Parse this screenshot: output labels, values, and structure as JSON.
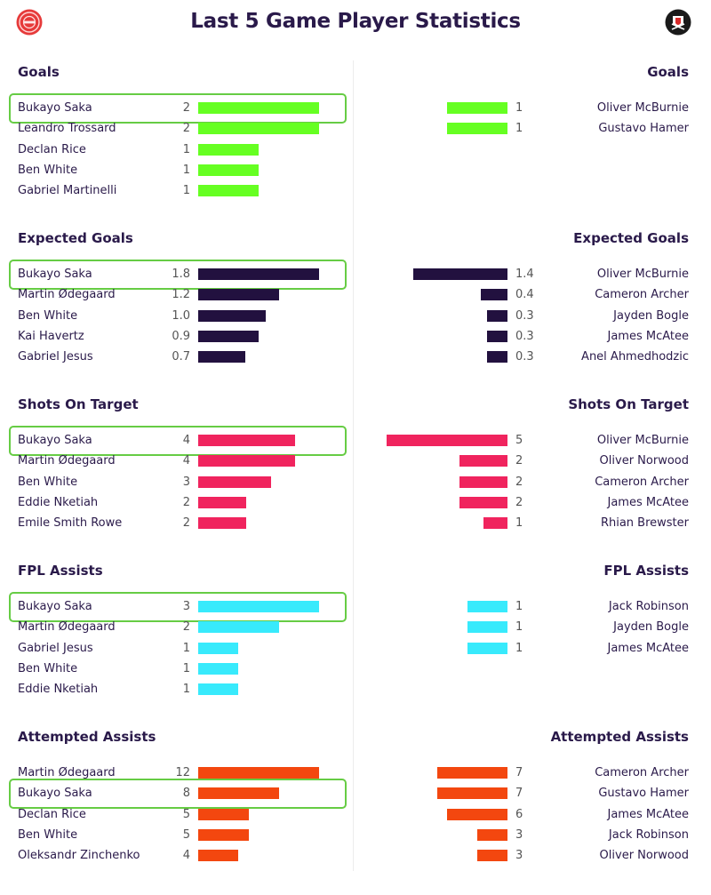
{
  "title": "Last 5 Game Player Statistics",
  "home_badge": "arsenal-badge-icon",
  "away_badge": "sheffield-united-badge-icon",
  "highlight_color": "#66cc44",
  "chart_data": [
    {
      "type": "bar",
      "title": "Goals",
      "color": "#66ff22",
      "max": 2,
      "highlight_player": "Bukayo Saka",
      "left": [
        {
          "name": "Bukayo Saka",
          "value": 2,
          "label": "2"
        },
        {
          "name": "Leandro Trossard",
          "value": 2,
          "label": "2"
        },
        {
          "name": "Declan Rice",
          "value": 1,
          "label": "1"
        },
        {
          "name": "Ben White",
          "value": 1,
          "label": "1"
        },
        {
          "name": "Gabriel Martinelli",
          "value": 1,
          "label": "1"
        }
      ],
      "right": [
        {
          "name": "Oliver McBurnie",
          "value": 1,
          "label": "1"
        },
        {
          "name": "Gustavo Hamer",
          "value": 1,
          "label": "1"
        }
      ]
    },
    {
      "type": "bar",
      "title": "Expected Goals",
      "color": "#22113f",
      "max": 1.8,
      "highlight_player": "Bukayo Saka",
      "left": [
        {
          "name": "Bukayo Saka",
          "value": 1.8,
          "label": "1.8"
        },
        {
          "name": "Martin Ødegaard",
          "value": 1.2,
          "label": "1.2"
        },
        {
          "name": "Ben White",
          "value": 1.0,
          "label": "1.0"
        },
        {
          "name": "Kai Havertz",
          "value": 0.9,
          "label": "0.9"
        },
        {
          "name": "Gabriel Jesus",
          "value": 0.7,
          "label": "0.7"
        }
      ],
      "right": [
        {
          "name": "Oliver McBurnie",
          "value": 1.4,
          "label": "1.4"
        },
        {
          "name": "Cameron Archer",
          "value": 0.4,
          "label": "0.4"
        },
        {
          "name": "Jayden Bogle",
          "value": 0.3,
          "label": "0.3"
        },
        {
          "name": "James McAtee",
          "value": 0.3,
          "label": "0.3"
        },
        {
          "name": "Anel Ahmedhodzic",
          "value": 0.3,
          "label": "0.3"
        }
      ]
    },
    {
      "type": "bar",
      "title": "Shots On Target",
      "color": "#f0245e",
      "max": 5,
      "highlight_player": "Bukayo Saka",
      "left": [
        {
          "name": "Bukayo Saka",
          "value": 4,
          "label": "4"
        },
        {
          "name": "Martin Ødegaard",
          "value": 4,
          "label": "4"
        },
        {
          "name": "Ben White",
          "value": 3,
          "label": "3"
        },
        {
          "name": "Eddie Nketiah",
          "value": 2,
          "label": "2"
        },
        {
          "name": "Emile Smith Rowe",
          "value": 2,
          "label": "2"
        }
      ],
      "right": [
        {
          "name": "Oliver McBurnie",
          "value": 5,
          "label": "5"
        },
        {
          "name": "Oliver Norwood",
          "value": 2,
          "label": "2"
        },
        {
          "name": "Cameron Archer",
          "value": 2,
          "label": "2"
        },
        {
          "name": "James McAtee",
          "value": 2,
          "label": "2"
        },
        {
          "name": "Rhian Brewster",
          "value": 1,
          "label": "1"
        }
      ]
    },
    {
      "type": "bar",
      "title": "FPL Assists",
      "color": "#38eafc",
      "max": 3,
      "highlight_player": "Bukayo Saka",
      "left": [
        {
          "name": "Bukayo Saka",
          "value": 3,
          "label": "3"
        },
        {
          "name": "Martin Ødegaard",
          "value": 2,
          "label": "2"
        },
        {
          "name": "Gabriel Jesus",
          "value": 1,
          "label": "1"
        },
        {
          "name": "Ben White",
          "value": 1,
          "label": "1"
        },
        {
          "name": "Eddie Nketiah",
          "value": 1,
          "label": "1"
        }
      ],
      "right": [
        {
          "name": "Jack Robinson",
          "value": 1,
          "label": "1"
        },
        {
          "name": "Jayden Bogle",
          "value": 1,
          "label": "1"
        },
        {
          "name": "James McAtee",
          "value": 1,
          "label": "1"
        }
      ]
    },
    {
      "type": "bar",
      "title": "Attempted Assists",
      "color": "#f3470f",
      "max": 12,
      "highlight_player": "Bukayo Saka",
      "left": [
        {
          "name": "Martin Ødegaard",
          "value": 12,
          "label": "12"
        },
        {
          "name": "Bukayo Saka",
          "value": 8,
          "label": "8"
        },
        {
          "name": "Declan Rice",
          "value": 5,
          "label": "5"
        },
        {
          "name": "Ben White",
          "value": 5,
          "label": "5"
        },
        {
          "name": "Oleksandr Zinchenko",
          "value": 4,
          "label": "4"
        }
      ],
      "right": [
        {
          "name": "Cameron Archer",
          "value": 7,
          "label": "7"
        },
        {
          "name": "Gustavo Hamer",
          "value": 7,
          "label": "7"
        },
        {
          "name": "James McAtee",
          "value": 6,
          "label": "6"
        },
        {
          "name": "Jack Robinson",
          "value": 3,
          "label": "3"
        },
        {
          "name": "Oliver Norwood",
          "value": 3,
          "label": "3"
        }
      ]
    }
  ]
}
